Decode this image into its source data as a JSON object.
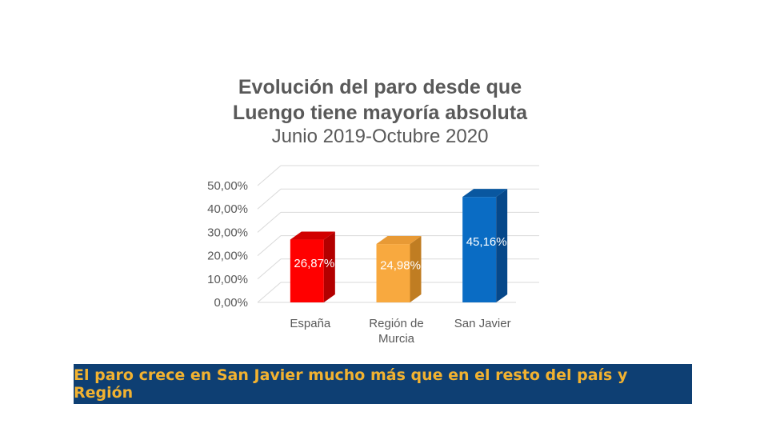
{
  "title": [
    "Evolución del paro desde que",
    "Luengo tiene mayoría absoluta"
  ],
  "subtitle": "Junio 2019-Octubre 2020",
  "banner": "El paro crece en San Javier mucho más que en el resto del país y Región",
  "chart_data": {
    "type": "bar",
    "categories": [
      "España",
      "Región de Murcia",
      "San Javier"
    ],
    "category_lines": [
      [
        "España"
      ],
      [
        "Región de",
        "Murcia"
      ],
      [
        "San Javier"
      ]
    ],
    "values": [
      26.87,
      24.98,
      45.16
    ],
    "data_labels": [
      "26,87%",
      "24,98%",
      "45,16%"
    ],
    "y_ticks": [
      "0,00%",
      "10,00%",
      "20,00%",
      "30,00%",
      "40,00%",
      "50,00%"
    ],
    "ylim": [
      0,
      50
    ],
    "colors": [
      "#ff0000",
      "#f8a93f",
      "#0a6cc4"
    ],
    "side_colors": [
      "#b30000",
      "#c07d22",
      "#06488a"
    ],
    "top_colors": [
      "#d10000",
      "#e89a35",
      "#0957a0"
    ],
    "grid": true,
    "three_d": true
  }
}
